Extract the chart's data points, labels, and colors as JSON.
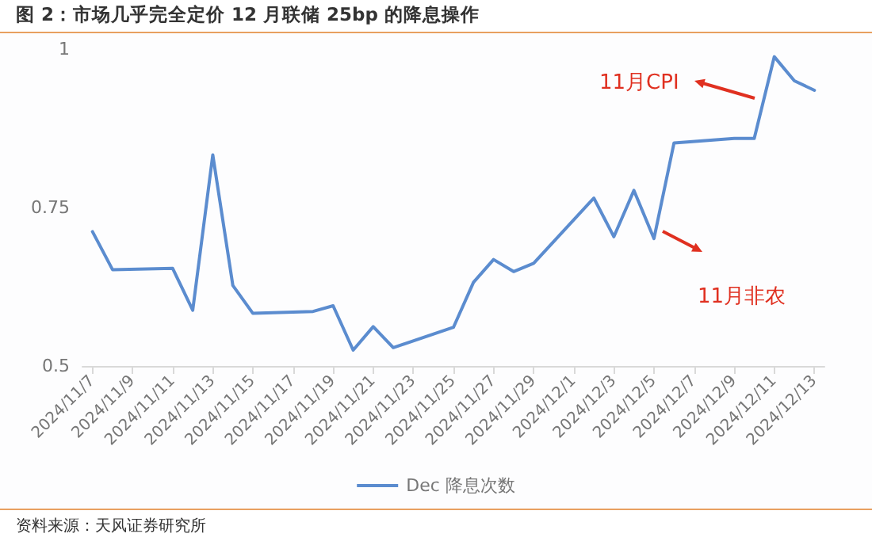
{
  "chart_data": {
    "type": "line",
    "title": "图 2：市场几乎完全定价 12 月联储 25bp 的降息操作",
    "x": [
      "2024-11-07",
      "2024-11-08",
      "2024-11-11",
      "2024-11-12",
      "2024-11-13",
      "2024-11-14",
      "2024-11-15",
      "2024-11-18",
      "2024-11-19",
      "2024-11-20",
      "2024-11-21",
      "2024-11-22",
      "2024-11-25",
      "2024-11-26",
      "2024-11-27",
      "2024-11-28",
      "2024-11-29",
      "2024-12-02",
      "2024-12-03",
      "2024-12-04",
      "2024-12-05",
      "2024-12-06",
      "2024-12-09",
      "2024-12-10",
      "2024-12-11",
      "2024-12-12",
      "2024-12-13"
    ],
    "series": [
      {
        "name": "Dec 降息次数",
        "color": "#5b8ccf",
        "values": [
          0.712,
          0.652,
          0.654,
          0.588,
          0.833,
          0.627,
          0.583,
          0.586,
          0.595,
          0.525,
          0.562,
          0.529,
          0.561,
          0.632,
          0.668,
          0.649,
          0.662,
          0.765,
          0.704,
          0.777,
          0.701,
          0.852,
          0.859,
          0.859,
          0.988,
          0.95,
          0.935
        ]
      }
    ],
    "xlim": [
      "2024-11-06T12:00",
      "2024-12-13T12:00"
    ],
    "xticks": [
      {
        "value": "2024-11-07",
        "label": "2024/11/7"
      },
      {
        "value": "2024-11-09",
        "label": "2024/11/9"
      },
      {
        "value": "2024-11-11",
        "label": "2024/11/11"
      },
      {
        "value": "2024-11-13",
        "label": "2024/11/13"
      },
      {
        "value": "2024-11-15",
        "label": "2024/11/15"
      },
      {
        "value": "2024-11-17",
        "label": "2024/11/17"
      },
      {
        "value": "2024-11-19",
        "label": "2024/11/19"
      },
      {
        "value": "2024-11-21",
        "label": "2024/11/21"
      },
      {
        "value": "2024-11-23",
        "label": "2024/11/23"
      },
      {
        "value": "2024-11-25",
        "label": "2024/11/25"
      },
      {
        "value": "2024-11-27",
        "label": "2024/11/27"
      },
      {
        "value": "2024-11-29",
        "label": "2024/11/29"
      },
      {
        "value": "2024-12-01",
        "label": "2024/12/1"
      },
      {
        "value": "2024-12-03",
        "label": "2024/12/3"
      },
      {
        "value": "2024-12-05",
        "label": "2024/12/5"
      },
      {
        "value": "2024-12-07",
        "label": "2024/12/7"
      },
      {
        "value": "2024-12-09",
        "label": "2024/12/9"
      },
      {
        "value": "2024-12-11",
        "label": "2024/12/11"
      },
      {
        "value": "2024-12-13",
        "label": "2024/12/13"
      }
    ],
    "ylim": [
      0.5,
      1
    ],
    "yticks": [
      0.5,
      0.75,
      1
    ],
    "grid": false,
    "legend": "bottom",
    "marker": "none",
    "line_style": "solid",
    "annotations": [
      "11月CPI",
      "11月非农",
      "资料来源：天风证券研究所"
    ]
  }
}
